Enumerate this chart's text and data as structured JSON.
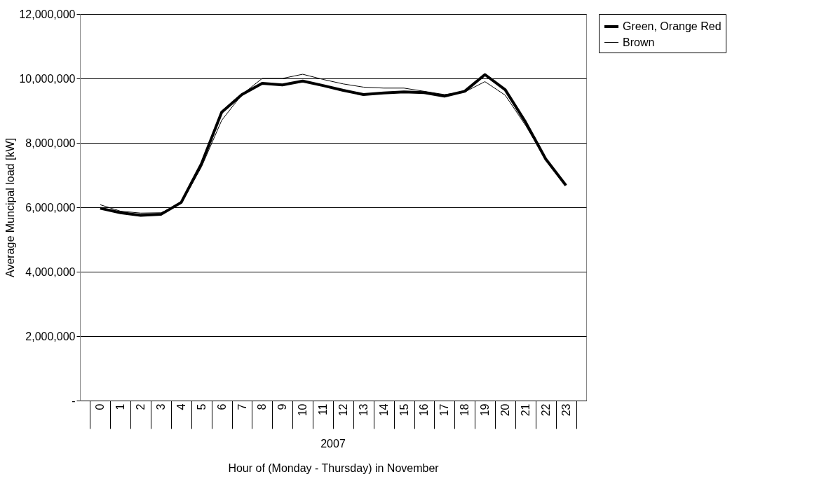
{
  "chart_data": {
    "type": "line",
    "categories": [
      "0",
      "1",
      "2",
      "3",
      "4",
      "5",
      "6",
      "7",
      "8",
      "9",
      "10",
      "11",
      "12",
      "13",
      "14",
      "15",
      "16",
      "17",
      "18",
      "19",
      "20",
      "21",
      "22",
      "23"
    ],
    "series": [
      {
        "name": "Green, Orange Red",
        "color": "#000000",
        "values": [
          5970000,
          5830000,
          5750000,
          5780000,
          6150000,
          7350000,
          8950000,
          9500000,
          9850000,
          9800000,
          9920000,
          9780000,
          9630000,
          9500000,
          9550000,
          9580000,
          9560000,
          9450000,
          9600000,
          10120000,
          9650000,
          8650000,
          7500000,
          6680000
        ]
      },
      {
        "name": "Brown",
        "color": "#000000",
        "values": [
          6080000,
          5880000,
          5820000,
          5830000,
          6120000,
          7250000,
          8700000,
          9500000,
          10000000,
          10000000,
          10130000,
          9970000,
          9830000,
          9730000,
          9700000,
          9700000,
          9600000,
          9500000,
          9580000,
          9900000,
          9480000,
          8550000,
          7480000,
          6680000
        ]
      }
    ],
    "xlabel": "Hour of (Monday - Thursday) in November",
    "ylabel": "Average Muncipal load [kW]",
    "annotations": [
      "2007"
    ],
    "ylim": [
      0,
      12000000
    ],
    "yticks": [
      {
        "value": 0,
        "label": "-"
      },
      {
        "value": 2000000,
        "label": "2,000,000"
      },
      {
        "value": 4000000,
        "label": "4,000,000"
      },
      {
        "value": 6000000,
        "label": "6,000,000"
      },
      {
        "value": 8000000,
        "label": "8,000,000"
      },
      {
        "value": 10000000,
        "label": "10,000,000"
      },
      {
        "value": 12000000,
        "label": "12,000,000"
      }
    ],
    "grid": "y",
    "legend": "right"
  }
}
